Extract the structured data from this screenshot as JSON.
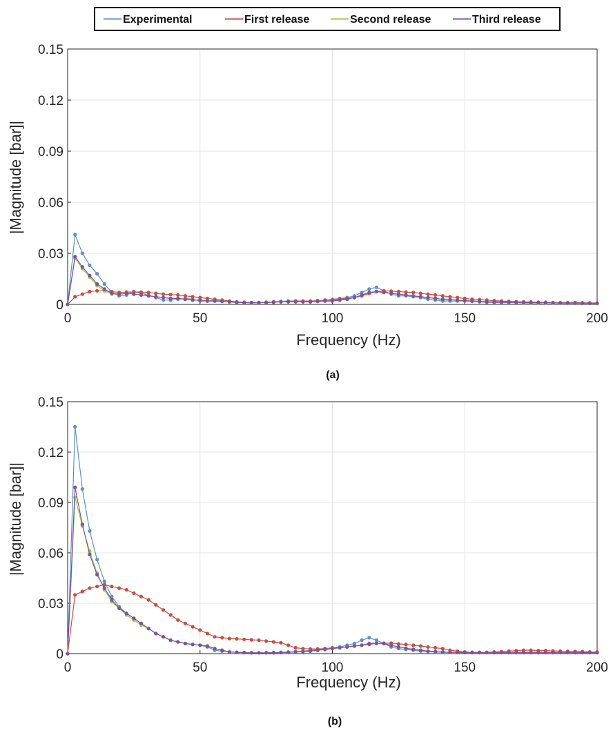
{
  "legend": {
    "entries": [
      {
        "label": "Experimental",
        "color": "#5b8fd0"
      },
      {
        "label": "First release",
        "color": "#cf4a3d"
      },
      {
        "label": "Second release",
        "color": "#9cc73a"
      },
      {
        "label": "Third release",
        "color": "#7b52a3"
      }
    ]
  },
  "chart_data": [
    {
      "type": "line",
      "caption": "(a)",
      "xlabel": "Frequency (Hz)",
      "ylabel": "|Magnitude [bar]|",
      "xlim": [
        0,
        200
      ],
      "ylim": [
        0,
        0.15
      ],
      "xticks": [
        "0",
        "50",
        "100",
        "150",
        "200"
      ],
      "yticks": [
        "0",
        "0.03",
        "0.06",
        "0.09",
        "0.12",
        "0.15"
      ],
      "grid": true,
      "x": [
        0,
        2.78,
        5.56,
        8.33,
        11.11,
        13.89,
        16.67,
        19.44,
        22.22,
        25,
        27.78,
        30.56,
        33.33,
        36.11,
        38.89,
        41.67,
        44.44,
        47.22,
        50,
        52.78,
        55.56,
        58.33,
        61.11,
        63.89,
        66.67,
        69.44,
        72.22,
        75,
        77.78,
        80.56,
        83.33,
        86.11,
        88.89,
        91.67,
        94.44,
        97.22,
        100,
        102.78,
        105.56,
        108.33,
        111.11,
        113.89,
        116.67,
        119.44,
        122.22,
        125,
        127.78,
        130.56,
        133.33,
        136.11,
        138.89,
        141.67,
        144.44,
        147.22,
        150,
        152.78,
        155.56,
        158.33,
        161.11,
        163.89,
        166.67,
        169.44,
        172.22,
        175,
        177.78,
        180.56,
        183.33,
        186.11,
        188.89,
        191.67,
        194.44,
        197.22,
        200
      ],
      "series": [
        {
          "name": "Experimental",
          "values": [
            0,
            0.041,
            0.03,
            0.023,
            0.018,
            0.012,
            0.007,
            0.005,
            0.0055,
            0.0075,
            0.0065,
            0.0055,
            0.004,
            0.0025,
            0.0025,
            0.003,
            0.0035,
            0.003,
            0.002,
            0.002,
            0.0025,
            0.002,
            0.0015,
            0.001,
            0.001,
            0.0008,
            0.001,
            0.0012,
            0.0015,
            0.0018,
            0.002,
            0.002,
            0.0018,
            0.0015,
            0.002,
            0.0025,
            0.003,
            0.0035,
            0.004,
            0.005,
            0.007,
            0.009,
            0.01,
            0.008,
            0.006,
            0.005,
            0.005,
            0.0045,
            0.004,
            0.003,
            0.0025,
            0.002,
            0.002,
            0.002,
            0.002,
            0.0018,
            0.0015,
            0.0012,
            0.001,
            0.001,
            0.001,
            0.001,
            0.0008,
            0.0008,
            0.0008,
            0.0008,
            0.0008,
            0.0007,
            0.0007,
            0.0007,
            0.0006,
            0.0006,
            0.0005
          ]
        },
        {
          "name": "First release",
          "values": [
            0,
            0.0045,
            0.006,
            0.0075,
            0.008,
            0.008,
            0.0075,
            0.007,
            0.0072,
            0.0073,
            0.0072,
            0.007,
            0.0065,
            0.006,
            0.0058,
            0.0055,
            0.005,
            0.0045,
            0.004,
            0.0035,
            0.003,
            0.0025,
            0.002,
            0.0015,
            0.0012,
            0.001,
            0.001,
            0.001,
            0.0012,
            0.0015,
            0.0018,
            0.002,
            0.002,
            0.002,
            0.0022,
            0.0025,
            0.0025,
            0.003,
            0.0035,
            0.004,
            0.005,
            0.0065,
            0.0075,
            0.008,
            0.0078,
            0.0075,
            0.0072,
            0.007,
            0.0065,
            0.006,
            0.0055,
            0.005,
            0.0045,
            0.004,
            0.0035,
            0.003,
            0.0028,
            0.0025,
            0.0022,
            0.002,
            0.0018,
            0.0016,
            0.0015,
            0.0014,
            0.0013,
            0.0012,
            0.0011,
            0.001,
            0.001,
            0.001,
            0.0009,
            0.0009,
            0.0008
          ]
        },
        {
          "name": "Second release",
          "values": [
            0,
            0.027,
            0.021,
            0.016,
            0.011,
            0.008,
            0.006,
            0.006,
            0.0065,
            0.006,
            0.0055,
            0.005,
            0.0045,
            0.004,
            0.0035,
            0.0035,
            0.003,
            0.0025,
            0.0025,
            0.002,
            0.002,
            0.0018,
            0.0015,
            0.0012,
            0.001,
            0.001,
            0.001,
            0.0012,
            0.0014,
            0.0015,
            0.0015,
            0.0015,
            0.0015,
            0.0015,
            0.0018,
            0.002,
            0.002,
            0.0025,
            0.003,
            0.004,
            0.0055,
            0.007,
            0.0075,
            0.007,
            0.0065,
            0.006,
            0.0055,
            0.005,
            0.0045,
            0.004,
            0.0035,
            0.003,
            0.0028,
            0.0025,
            0.0022,
            0.002,
            0.0018,
            0.0016,
            0.0015,
            0.0014,
            0.0013,
            0.0012,
            0.0011,
            0.001,
            0.001,
            0.001,
            0.0009,
            0.0009,
            0.0008,
            0.0008,
            0.0008,
            0.0007,
            0.0007
          ]
        },
        {
          "name": "Third release",
          "values": [
            0,
            0.028,
            0.022,
            0.017,
            0.012,
            0.009,
            0.0065,
            0.006,
            0.0065,
            0.006,
            0.0055,
            0.005,
            0.0045,
            0.004,
            0.0035,
            0.0035,
            0.003,
            0.0025,
            0.0025,
            0.002,
            0.002,
            0.0018,
            0.0015,
            0.0012,
            0.001,
            0.001,
            0.001,
            0.0012,
            0.0014,
            0.0015,
            0.0015,
            0.0015,
            0.0015,
            0.0015,
            0.0018,
            0.002,
            0.002,
            0.0025,
            0.003,
            0.004,
            0.0055,
            0.007,
            0.0075,
            0.007,
            0.0065,
            0.006,
            0.0055,
            0.005,
            0.0045,
            0.004,
            0.0035,
            0.003,
            0.0028,
            0.0025,
            0.0022,
            0.002,
            0.0018,
            0.0016,
            0.0015,
            0.0014,
            0.0013,
            0.0012,
            0.0011,
            0.001,
            0.001,
            0.001,
            0.0009,
            0.0009,
            0.0008,
            0.0008,
            0.0008,
            0.0007,
            0.0007
          ]
        }
      ]
    },
    {
      "type": "line",
      "caption": "(b)",
      "xlabel": "Frequency (Hz)",
      "ylabel": "|Magnitude [bar]|",
      "xlim": [
        0,
        200
      ],
      "ylim": [
        0,
        0.15
      ],
      "xticks": [
        "0",
        "50",
        "100",
        "150",
        "200"
      ],
      "yticks": [
        "0",
        "0.03",
        "0.06",
        "0.09",
        "0.12",
        "0.15"
      ],
      "grid": true,
      "x": [
        0,
        2.78,
        5.56,
        8.33,
        11.11,
        13.89,
        16.67,
        19.44,
        22.22,
        25,
        27.78,
        30.56,
        33.33,
        36.11,
        38.89,
        41.67,
        44.44,
        47.22,
        50,
        52.78,
        55.56,
        58.33,
        61.11,
        63.89,
        66.67,
        69.44,
        72.22,
        75,
        77.78,
        80.56,
        83.33,
        86.11,
        88.89,
        91.67,
        94.44,
        97.22,
        100,
        102.78,
        105.56,
        108.33,
        111.11,
        113.89,
        116.67,
        119.44,
        122.22,
        125,
        127.78,
        130.56,
        133.33,
        136.11,
        138.89,
        141.67,
        144.44,
        147.22,
        150,
        152.78,
        155.56,
        158.33,
        161.11,
        163.89,
        166.67,
        169.44,
        172.22,
        175,
        177.78,
        180.56,
        183.33,
        186.11,
        188.89,
        191.67,
        194.44,
        197.22,
        200
      ],
      "series": [
        {
          "name": "Experimental",
          "values": [
            0,
            0.135,
            0.098,
            0.073,
            0.056,
            0.043,
            0.034,
            0.028,
            0.024,
            0.021,
            0.018,
            0.015,
            0.012,
            0.01,
            0.008,
            0.007,
            0.006,
            0.0055,
            0.005,
            0.004,
            0.002,
            0.0015,
            0.001,
            0.0008,
            0.0006,
            0.0005,
            0.0005,
            0.0005,
            0.0006,
            0.0008,
            0.001,
            0.0012,
            0.0015,
            0.002,
            0.0025,
            0.003,
            0.0035,
            0.004,
            0.005,
            0.006,
            0.008,
            0.0095,
            0.008,
            0.006,
            0.004,
            0.003,
            0.0025,
            0.002,
            0.0015,
            0.0012,
            0.001,
            0.0008,
            0.0007,
            0.0006,
            0.0006,
            0.0006,
            0.0006,
            0.0006,
            0.0006,
            0.0006,
            0.0006,
            0.0006,
            0.0006,
            0.0006,
            0.0006,
            0.0006,
            0.0006,
            0.0006,
            0.0006,
            0.0006,
            0.0006,
            0.0006,
            0.0006
          ]
        },
        {
          "name": "First release",
          "values": [
            0,
            0.035,
            0.037,
            0.039,
            0.04,
            0.041,
            0.04,
            0.039,
            0.038,
            0.036,
            0.034,
            0.032,
            0.029,
            0.026,
            0.023,
            0.02,
            0.018,
            0.016,
            0.014,
            0.012,
            0.01,
            0.0095,
            0.009,
            0.0088,
            0.0085,
            0.0082,
            0.008,
            0.0075,
            0.007,
            0.0065,
            0.005,
            0.0035,
            0.003,
            0.0028,
            0.0028,
            0.003,
            0.0033,
            0.0035,
            0.004,
            0.0045,
            0.005,
            0.0055,
            0.006,
            0.0062,
            0.0062,
            0.0058,
            0.0055,
            0.005,
            0.0045,
            0.004,
            0.0035,
            0.003,
            0.002,
            0.0015,
            0.001,
            0.0008,
            0.0008,
            0.0008,
            0.001,
            0.0012,
            0.0015,
            0.0018,
            0.002,
            0.002,
            0.0018,
            0.0018,
            0.0016,
            0.0015,
            0.0014,
            0.0013,
            0.0012,
            0.001,
            0.001
          ]
        },
        {
          "name": "Second release",
          "values": [
            0,
            0.093,
            0.076,
            0.061,
            0.048,
            0.038,
            0.031,
            0.027,
            0.023,
            0.02,
            0.017,
            0.015,
            0.012,
            0.01,
            0.008,
            0.007,
            0.006,
            0.0055,
            0.005,
            0.0045,
            0.003,
            0.002,
            0.001,
            0.0008,
            0.0006,
            0.0005,
            0.0005,
            0.0005,
            0.0005,
            0.0006,
            0.0008,
            0.001,
            0.0012,
            0.0015,
            0.002,
            0.0025,
            0.003,
            0.0035,
            0.004,
            0.0045,
            0.005,
            0.006,
            0.0062,
            0.006,
            0.005,
            0.004,
            0.0032,
            0.0025,
            0.002,
            0.0015,
            0.0012,
            0.001,
            0.0008,
            0.0007,
            0.0006,
            0.0006,
            0.0006,
            0.0006,
            0.0006,
            0.0006,
            0.0006,
            0.0006,
            0.0006,
            0.0006,
            0.0006,
            0.0006,
            0.0006,
            0.0006,
            0.0006,
            0.0006,
            0.0006,
            0.0006,
            0.0006
          ]
        },
        {
          "name": "Third release",
          "values": [
            0,
            0.099,
            0.077,
            0.059,
            0.047,
            0.039,
            0.032,
            0.027,
            0.024,
            0.021,
            0.018,
            0.015,
            0.012,
            0.01,
            0.008,
            0.007,
            0.006,
            0.0055,
            0.005,
            0.0045,
            0.003,
            0.002,
            0.001,
            0.0008,
            0.0006,
            0.0005,
            0.0005,
            0.0005,
            0.0005,
            0.0006,
            0.0008,
            0.001,
            0.0012,
            0.0015,
            0.002,
            0.0025,
            0.003,
            0.0035,
            0.004,
            0.0045,
            0.005,
            0.006,
            0.0062,
            0.006,
            0.005,
            0.004,
            0.0032,
            0.0025,
            0.002,
            0.0015,
            0.0012,
            0.001,
            0.0008,
            0.0007,
            0.0006,
            0.0006,
            0.0006,
            0.0006,
            0.0006,
            0.0006,
            0.0006,
            0.0006,
            0.0006,
            0.0006,
            0.0006,
            0.0006,
            0.0006,
            0.0006,
            0.0006,
            0.0006,
            0.0006,
            0.0006,
            0.0006
          ]
        }
      ]
    }
  ]
}
